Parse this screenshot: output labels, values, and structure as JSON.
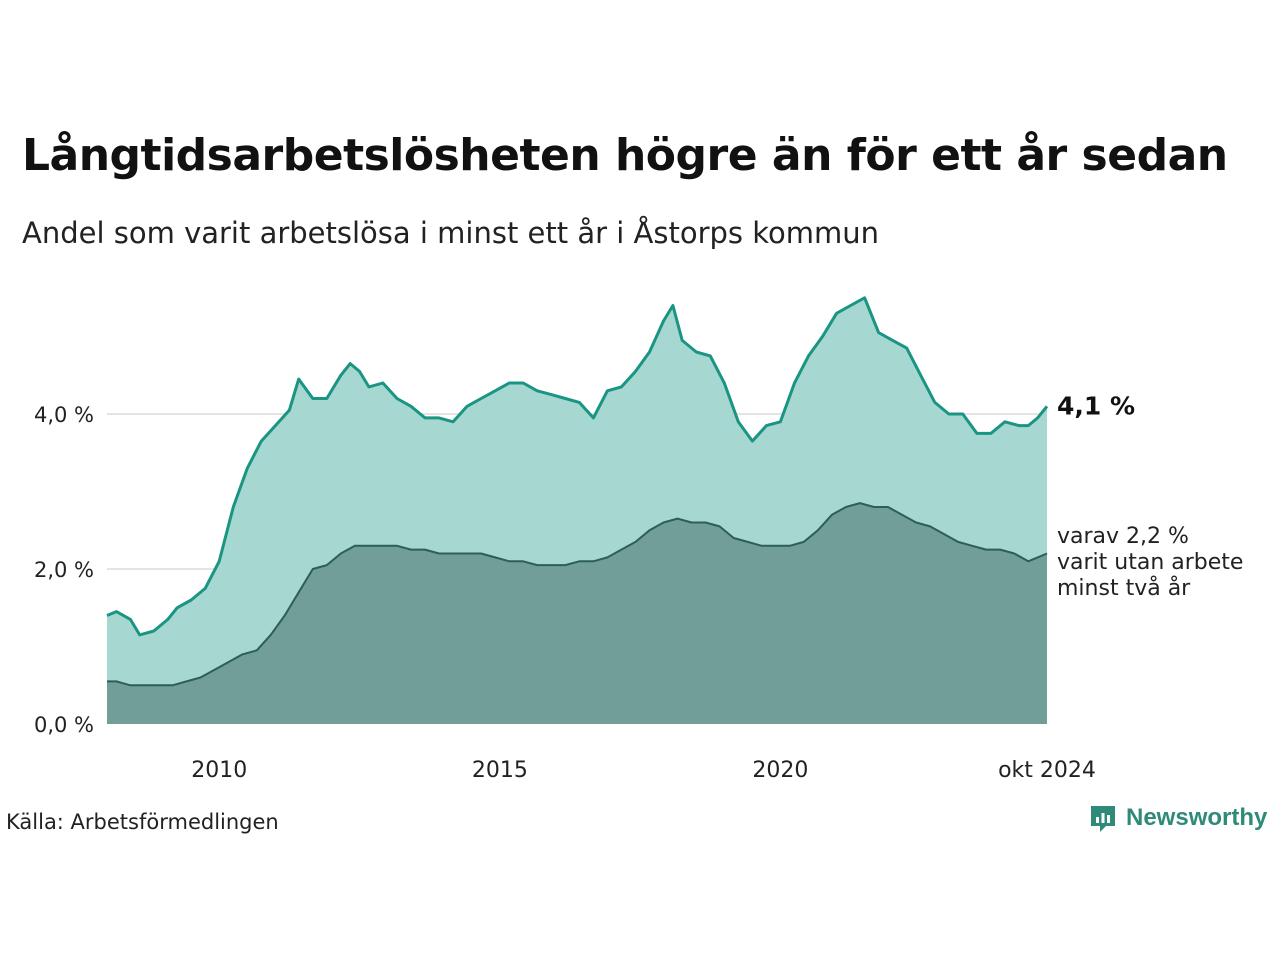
{
  "title": "Långtidsarbetslösheten högre än för ett år sedan",
  "subtitle": "Andel som varit arbetslösa i minst ett år i Åstorps kommun",
  "source": "Källa: Arbetsförmedlingen",
  "brand": "Newsworthy",
  "colors": {
    "main_line": "#1a9483",
    "main_fill": "#a6d8d1",
    "sub_line": "#2c5f55",
    "sub_fill": "#719e96",
    "grid": "#dcdcdc",
    "brand": "#2f8a78"
  },
  "chart_data": {
    "type": "area",
    "x_start": "2008-01",
    "x_end": "2024-10",
    "ylim": [
      0,
      5.6
    ],
    "yticks": [
      0,
      2,
      4
    ],
    "ytick_labels": [
      "0,0 %",
      "2,0 %",
      "4,0 %"
    ],
    "xticks": [
      {
        "date": "2010-01",
        "label": "2010"
      },
      {
        "date": "2015-01",
        "label": "2015"
      },
      {
        "date": "2020-01",
        "label": "2020"
      },
      {
        "date": "2024-10",
        "label": "okt 2024"
      }
    ],
    "grid": true,
    "series": [
      {
        "end_label": "4,1 %",
        "points": [
          [
            "2008-01",
            1.4
          ],
          [
            "2008-03",
            1.45
          ],
          [
            "2008-06",
            1.35
          ],
          [
            "2008-08",
            1.15
          ],
          [
            "2008-11",
            1.2
          ],
          [
            "2009-02",
            1.35
          ],
          [
            "2009-04",
            1.5
          ],
          [
            "2009-07",
            1.6
          ],
          [
            "2009-10",
            1.75
          ],
          [
            "2010-01",
            2.1
          ],
          [
            "2010-04",
            2.8
          ],
          [
            "2010-07",
            3.3
          ],
          [
            "2010-10",
            3.65
          ],
          [
            "2011-01",
            3.85
          ],
          [
            "2011-04",
            4.05
          ],
          [
            "2011-06",
            4.45
          ],
          [
            "2011-09",
            4.2
          ],
          [
            "2011-12",
            4.2
          ],
          [
            "2012-03",
            4.5
          ],
          [
            "2012-05",
            4.65
          ],
          [
            "2012-07",
            4.55
          ],
          [
            "2012-09",
            4.35
          ],
          [
            "2012-12",
            4.4
          ],
          [
            "2013-03",
            4.2
          ],
          [
            "2013-06",
            4.1
          ],
          [
            "2013-09",
            3.95
          ],
          [
            "2013-12",
            3.95
          ],
          [
            "2014-03",
            3.9
          ],
          [
            "2014-06",
            4.1
          ],
          [
            "2014-09",
            4.2
          ],
          [
            "2014-12",
            4.3
          ],
          [
            "2015-03",
            4.4
          ],
          [
            "2015-06",
            4.4
          ],
          [
            "2015-09",
            4.3
          ],
          [
            "2015-12",
            4.25
          ],
          [
            "2016-03",
            4.2
          ],
          [
            "2016-06",
            4.15
          ],
          [
            "2016-09",
            3.95
          ],
          [
            "2016-12",
            4.3
          ],
          [
            "2017-03",
            4.35
          ],
          [
            "2017-06",
            4.55
          ],
          [
            "2017-09",
            4.8
          ],
          [
            "2017-12",
            5.2
          ],
          [
            "2018-02",
            5.4
          ],
          [
            "2018-04",
            4.95
          ],
          [
            "2018-07",
            4.8
          ],
          [
            "2018-10",
            4.75
          ],
          [
            "2019-01",
            4.4
          ],
          [
            "2019-04",
            3.9
          ],
          [
            "2019-07",
            3.65
          ],
          [
            "2019-10",
            3.85
          ],
          [
            "2020-01",
            3.9
          ],
          [
            "2020-04",
            4.4
          ],
          [
            "2020-07",
            4.75
          ],
          [
            "2020-10",
            5.0
          ],
          [
            "2021-01",
            5.3
          ],
          [
            "2021-04",
            5.4
          ],
          [
            "2021-07",
            5.5
          ],
          [
            "2021-10",
            5.05
          ],
          [
            "2022-01",
            4.95
          ],
          [
            "2022-04",
            4.85
          ],
          [
            "2022-07",
            4.5
          ],
          [
            "2022-10",
            4.15
          ],
          [
            "2023-01",
            4.0
          ],
          [
            "2023-04",
            4.0
          ],
          [
            "2023-07",
            3.75
          ],
          [
            "2023-10",
            3.75
          ],
          [
            "2024-01",
            3.9
          ],
          [
            "2024-04",
            3.85
          ],
          [
            "2024-06",
            3.85
          ],
          [
            "2024-08",
            3.95
          ],
          [
            "2024-10",
            4.1
          ]
        ]
      },
      {
        "end_label": [
          "varav 2,2 %",
          "varit utan arbete",
          "minst två år"
        ],
        "points": [
          [
            "2008-01",
            0.55
          ],
          [
            "2008-03",
            0.55
          ],
          [
            "2008-06",
            0.5
          ],
          [
            "2008-09",
            0.5
          ],
          [
            "2008-12",
            0.5
          ],
          [
            "2009-03",
            0.5
          ],
          [
            "2009-06",
            0.55
          ],
          [
            "2009-09",
            0.6
          ],
          [
            "2009-12",
            0.7
          ],
          [
            "2010-03",
            0.8
          ],
          [
            "2010-06",
            0.9
          ],
          [
            "2010-09",
            0.95
          ],
          [
            "2010-12",
            1.15
          ],
          [
            "2011-03",
            1.4
          ],
          [
            "2011-06",
            1.7
          ],
          [
            "2011-09",
            2.0
          ],
          [
            "2011-12",
            2.05
          ],
          [
            "2012-03",
            2.2
          ],
          [
            "2012-06",
            2.3
          ],
          [
            "2012-09",
            2.3
          ],
          [
            "2012-12",
            2.3
          ],
          [
            "2013-03",
            2.3
          ],
          [
            "2013-06",
            2.25
          ],
          [
            "2013-09",
            2.25
          ],
          [
            "2013-12",
            2.2
          ],
          [
            "2014-03",
            2.2
          ],
          [
            "2014-06",
            2.2
          ],
          [
            "2014-09",
            2.2
          ],
          [
            "2014-12",
            2.15
          ],
          [
            "2015-03",
            2.1
          ],
          [
            "2015-06",
            2.1
          ],
          [
            "2015-09",
            2.05
          ],
          [
            "2015-12",
            2.05
          ],
          [
            "2016-03",
            2.05
          ],
          [
            "2016-06",
            2.1
          ],
          [
            "2016-09",
            2.1
          ],
          [
            "2016-12",
            2.15
          ],
          [
            "2017-03",
            2.25
          ],
          [
            "2017-06",
            2.35
          ],
          [
            "2017-09",
            2.5
          ],
          [
            "2017-12",
            2.6
          ],
          [
            "2018-03",
            2.65
          ],
          [
            "2018-06",
            2.6
          ],
          [
            "2018-09",
            2.6
          ],
          [
            "2018-12",
            2.55
          ],
          [
            "2019-03",
            2.4
          ],
          [
            "2019-06",
            2.35
          ],
          [
            "2019-09",
            2.3
          ],
          [
            "2019-12",
            2.3
          ],
          [
            "2020-03",
            2.3
          ],
          [
            "2020-06",
            2.35
          ],
          [
            "2020-09",
            2.5
          ],
          [
            "2020-12",
            2.7
          ],
          [
            "2021-03",
            2.8
          ],
          [
            "2021-06",
            2.85
          ],
          [
            "2021-09",
            2.8
          ],
          [
            "2021-12",
            2.8
          ],
          [
            "2022-03",
            2.7
          ],
          [
            "2022-06",
            2.6
          ],
          [
            "2022-09",
            2.55
          ],
          [
            "2022-12",
            2.45
          ],
          [
            "2023-03",
            2.35
          ],
          [
            "2023-06",
            2.3
          ],
          [
            "2023-09",
            2.25
          ],
          [
            "2023-12",
            2.25
          ],
          [
            "2024-03",
            2.2
          ],
          [
            "2024-06",
            2.1
          ],
          [
            "2024-08",
            2.15
          ],
          [
            "2024-10",
            2.2
          ]
        ]
      }
    ]
  }
}
